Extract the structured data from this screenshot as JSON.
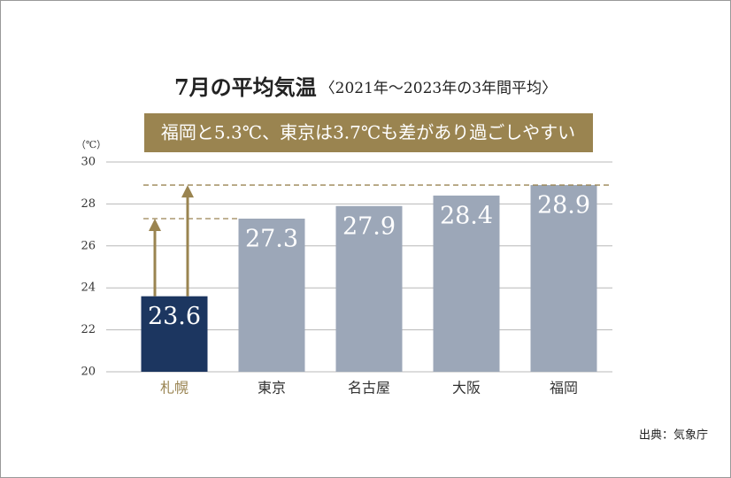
{
  "chart_data": {
    "type": "bar",
    "title": "7月の平均気温",
    "subtitle": "〈2021年～2023年の3年間平均〉",
    "annotation": "福岡と5.3℃、東京は3.7℃も差があり過ごしやすい",
    "y_unit": "（℃）",
    "source": "出典：気象庁",
    "categories": [
      "札幌",
      "東京",
      "名古屋",
      "大阪",
      "福岡"
    ],
    "values": [
      23.6,
      27.3,
      27.9,
      28.4,
      28.9
    ],
    "colors": [
      "#1c3660",
      "#9ca7b8",
      "#9ca7b8",
      "#9ca7b8",
      "#9ca7b8"
    ],
    "category_colors": [
      "#9a8553",
      "#333333",
      "#333333",
      "#333333",
      "#333333"
    ],
    "annotation_color": "#9a8450",
    "ylim": [
      20,
      30
    ],
    "yticks": [
      20,
      22,
      24,
      26,
      28,
      30
    ],
    "grid": true
  }
}
